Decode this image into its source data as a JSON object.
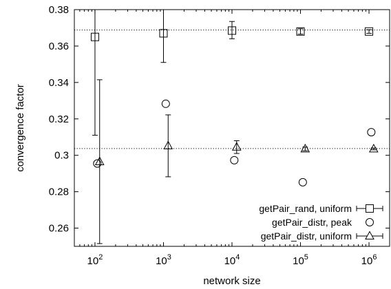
{
  "chart_data": {
    "type": "scatter",
    "title": "",
    "xlabel": "network size",
    "ylabel": "convergence factor",
    "xscale": "log",
    "xlim": [
      50,
      2000000
    ],
    "ylim": [
      0.25,
      0.38
    ],
    "x_ticks": [
      {
        "value": 100,
        "base": "10",
        "exp": "2"
      },
      {
        "value": 1000,
        "base": "10",
        "exp": "3"
      },
      {
        "value": 10000,
        "base": "10",
        "exp": "4"
      },
      {
        "value": 100000,
        "base": "10",
        "exp": "5"
      },
      {
        "value": 1000000,
        "base": "10",
        "exp": "6"
      }
    ],
    "y_ticks": [
      {
        "value": 0.26,
        "label": "0.26"
      },
      {
        "value": 0.28,
        "label": "0.28"
      },
      {
        "value": 0.3,
        "label": "0.3"
      },
      {
        "value": 0.32,
        "label": "0.32"
      },
      {
        "value": 0.34,
        "label": "0.34"
      },
      {
        "value": 0.36,
        "label": "0.36"
      },
      {
        "value": 0.38,
        "label": "0.38"
      }
    ],
    "grid": false,
    "legend_position": "bottom-right",
    "reference_lines": [
      0.3688,
      0.3037
    ],
    "series": [
      {
        "name": "getPair_rand, uniform",
        "marker": "square",
        "error_bars": true,
        "points": [
          {
            "x": 100,
            "y": 0.365,
            "lo": 0.311,
            "hi": 0.38
          },
          {
            "x": 1000,
            "y": 0.367,
            "lo": 0.351,
            "hi": 0.38
          },
          {
            "x": 10000,
            "y": 0.3685,
            "lo": 0.364,
            "hi": 0.3735
          },
          {
            "x": 100000,
            "y": 0.368,
            "lo": 0.3665,
            "hi": 0.3695
          },
          {
            "x": 1000000,
            "y": 0.368,
            "lo": 0.367,
            "hi": 0.369
          }
        ]
      },
      {
        "name": "getPair_distr, peak",
        "marker": "circle",
        "error_bars": false,
        "points": [
          {
            "x": 108,
            "y": 0.2955
          },
          {
            "x": 1080,
            "y": 0.3283
          },
          {
            "x": 10800,
            "y": 0.2973
          },
          {
            "x": 108000,
            "y": 0.2852
          },
          {
            "x": 1080000,
            "y": 0.3127
          }
        ]
      },
      {
        "name": "getPair_distr, uniform",
        "marker": "triangle",
        "error_bars": true,
        "points": [
          {
            "x": 117,
            "y": 0.2965,
            "lo": 0.2515,
            "hi": 0.3415
          },
          {
            "x": 1170,
            "y": 0.3052,
            "lo": 0.2882,
            "hi": 0.3222
          },
          {
            "x": 11700,
            "y": 0.3045,
            "lo": 0.301,
            "hi": 0.308
          },
          {
            "x": 117000,
            "y": 0.3035,
            "lo": 0.3025,
            "hi": 0.3045
          },
          {
            "x": 1170000,
            "y": 0.3035,
            "lo": 0.303,
            "hi": 0.304
          }
        ]
      }
    ]
  }
}
